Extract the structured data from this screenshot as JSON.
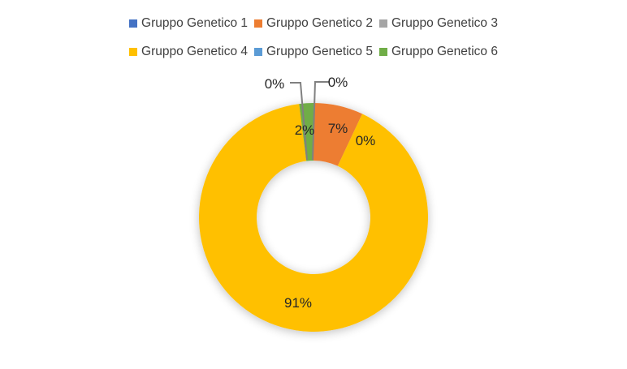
{
  "chart_data": {
    "type": "pie",
    "variant": "donut",
    "categories": [
      "Gruppo Genetico 1",
      "Gruppo Genetico 2",
      "Gruppo Genetico 3",
      "Gruppo Genetico 4",
      "Gruppo Genetico 5",
      "Gruppo Genetico 6"
    ],
    "values": [
      0,
      7,
      0,
      91,
      0,
      2
    ],
    "data_labels": [
      "0%",
      "7%",
      "0%",
      "91%",
      "0%",
      "2%"
    ],
    "colors": [
      "#4472C4",
      "#ED7D31",
      "#A5A5A5",
      "#FFC000",
      "#5B9BD5",
      "#70AD47"
    ],
    "legend_position": "top",
    "start_angle": "top, clockwise"
  }
}
